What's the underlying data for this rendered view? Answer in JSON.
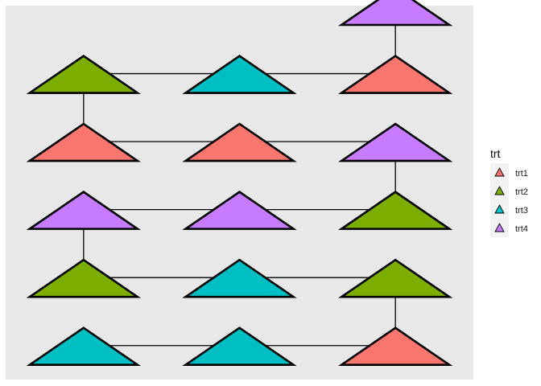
{
  "chart_data": {
    "type": "scatter",
    "marker": "triangle",
    "title": "",
    "xlabel": "",
    "ylabel": "",
    "grid": false,
    "axes_visible": false,
    "legend_placement": "right",
    "legend": {
      "title": "trt",
      "entries": [
        {
          "name": "trt1",
          "color": "#F8766D"
        },
        {
          "name": "trt2",
          "color": "#7CAE00"
        },
        {
          "name": "trt3",
          "color": "#00BFC4"
        },
        {
          "name": "trt4",
          "color": "#C77CFF"
        }
      ]
    },
    "xlim": [
      0.5,
      3.5
    ],
    "ylim": [
      0.5,
      6.0
    ],
    "points": [
      {
        "x": 1,
        "y": 1,
        "trt": "trt3"
      },
      {
        "x": 2,
        "y": 1,
        "trt": "trt3"
      },
      {
        "x": 3,
        "y": 1,
        "trt": "trt1"
      },
      {
        "x": 1,
        "y": 2,
        "trt": "trt2"
      },
      {
        "x": 2,
        "y": 2,
        "trt": "trt3"
      },
      {
        "x": 3,
        "y": 2,
        "trt": "trt2"
      },
      {
        "x": 1,
        "y": 3,
        "trt": "trt4"
      },
      {
        "x": 2,
        "y": 3,
        "trt": "trt4"
      },
      {
        "x": 3,
        "y": 3,
        "trt": "trt2"
      },
      {
        "x": 1,
        "y": 4,
        "trt": "trt1"
      },
      {
        "x": 2,
        "y": 4,
        "trt": "trt1"
      },
      {
        "x": 3,
        "y": 4,
        "trt": "trt4"
      },
      {
        "x": 1,
        "y": 5,
        "trt": "trt2"
      },
      {
        "x": 2,
        "y": 5,
        "trt": "trt3"
      },
      {
        "x": 3,
        "y": 5,
        "trt": "trt1"
      },
      {
        "x": 3,
        "y": 6,
        "trt": "trt4"
      }
    ],
    "segments": [
      {
        "from": [
          1,
          1
        ],
        "to": [
          3,
          1
        ]
      },
      {
        "from": [
          1,
          2
        ],
        "to": [
          3,
          2
        ]
      },
      {
        "from": [
          1,
          3
        ],
        "to": [
          3,
          3
        ]
      },
      {
        "from": [
          1,
          4
        ],
        "to": [
          3,
          4
        ]
      },
      {
        "from": [
          1,
          5
        ],
        "to": [
          3,
          5
        ]
      },
      {
        "from": [
          3,
          1
        ],
        "to": [
          3,
          2
        ]
      },
      {
        "from": [
          1,
          2
        ],
        "to": [
          1,
          3
        ]
      },
      {
        "from": [
          3,
          3
        ],
        "to": [
          3,
          4
        ]
      },
      {
        "from": [
          1,
          4
        ],
        "to": [
          1,
          5
        ]
      },
      {
        "from": [
          3,
          5
        ],
        "to": [
          3,
          6
        ]
      }
    ]
  }
}
